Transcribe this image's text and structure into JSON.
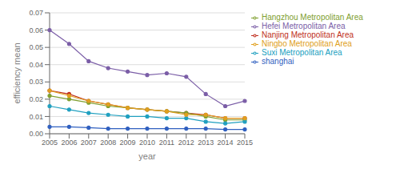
{
  "chart_data": {
    "type": "line",
    "xlabel": "year",
    "ylabel": "efficiency mean",
    "x": [
      2005,
      2006,
      2007,
      2008,
      2009,
      2010,
      2011,
      2012,
      2013,
      2014,
      2015
    ],
    "xlim": [
      2005,
      2015
    ],
    "xticks": [
      2005,
      2006,
      2007,
      2008,
      2009,
      2010,
      2011,
      2012,
      2013,
      2014,
      2015
    ],
    "ylim": [
      0,
      0.07
    ],
    "yticks": [
      {
        "value": 0,
        "label": "0.00"
      },
      0.01,
      0.02,
      0.03,
      0.04,
      0.05,
      0.06,
      0.07
    ],
    "grid": "y",
    "legend": "right",
    "series": [
      {
        "name": "shanghai",
        "color": "#3060C0",
        "marker": "circle",
        "values": [
          0.004,
          0.004,
          0.0035,
          0.003,
          0.003,
          0.003,
          0.003,
          0.003,
          0.003,
          0.0025,
          0.0025
        ]
      },
      {
        "name": "Nanjing Metropolitan Area",
        "color": "#C03020",
        "marker": "circle",
        "values": [
          0.025,
          0.023,
          0.019,
          0.017,
          0.015,
          0.014,
          0.013,
          0.012,
          0.011,
          0.009,
          0.009
        ]
      },
      {
        "name": "Hangzhou Metropolitan Area",
        "color": "#80A030",
        "marker": "circle",
        "values": [
          0.022,
          0.02,
          0.018,
          0.016,
          0.015,
          0.014,
          0.013,
          0.012,
          0.01,
          0.008,
          0.008
        ]
      },
      {
        "name": "Hefei Metropolitan Area",
        "color": "#7B5EA7",
        "marker": "circle",
        "values": [
          0.06,
          0.052,
          0.042,
          0.038,
          0.036,
          0.034,
          0.035,
          0.033,
          0.023,
          0.016,
          0.019
        ]
      },
      {
        "name": "Suxi Metropolitan Area",
        "color": "#20A0C0",
        "marker": "circle",
        "values": [
          0.016,
          0.014,
          0.012,
          0.011,
          0.01,
          0.01,
          0.009,
          0.009,
          0.007,
          0.006,
          0.007
        ]
      },
      {
        "name": "Ningbo Metropolitan Area",
        "color": "#E0A020",
        "marker": "circle",
        "values": [
          0.025,
          0.022,
          0.019,
          0.017,
          0.015,
          0.014,
          0.013,
          0.011,
          0.011,
          0.009,
          0.009
        ]
      }
    ]
  }
}
